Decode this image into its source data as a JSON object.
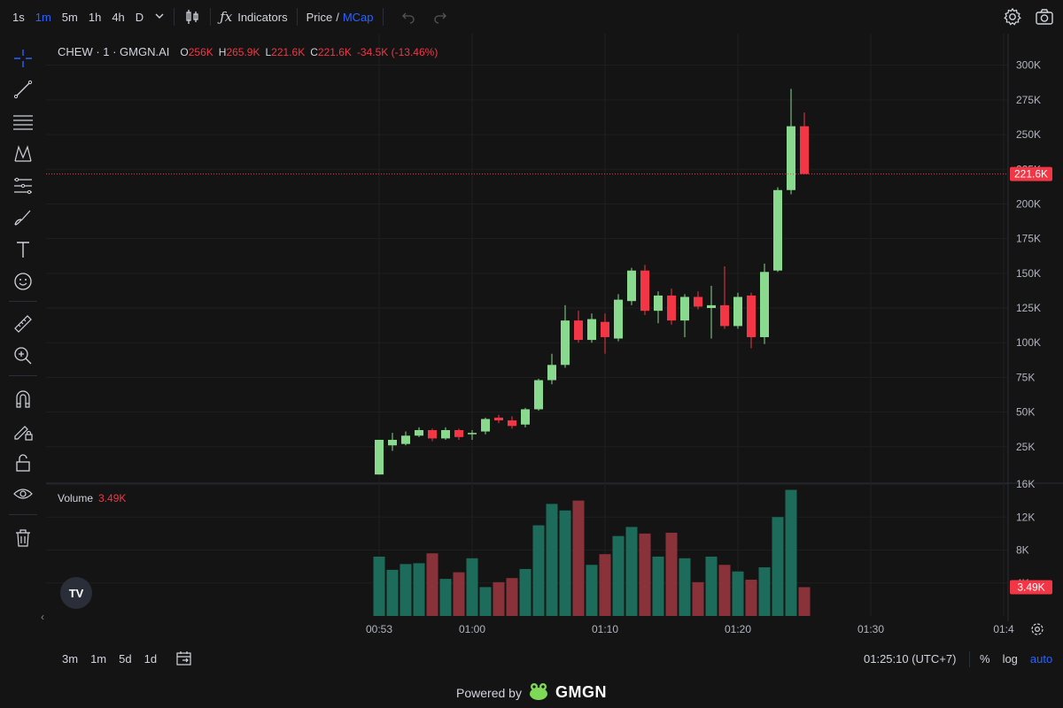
{
  "toolbar": {
    "timeframes": [
      "1s",
      "1m",
      "5m",
      "1h",
      "4h",
      "D"
    ],
    "active_timeframe": "1m",
    "indicators_label": "Indicators",
    "price_label": "Price",
    "slash": "/",
    "mcap_label": "MCap"
  },
  "legend": {
    "symbol": "CHEW · 1 · GMGN.AI",
    "o_key": "O",
    "o_val": "256K",
    "h_key": "H",
    "h_val": "265.9K",
    "l_key": "L",
    "l_val": "221.6K",
    "c_key": "C",
    "c_val": "221.6K",
    "change": "-34.5K (-13.46%)"
  },
  "volume_legend": {
    "label": "Volume",
    "value": "3.49K"
  },
  "bottom": {
    "ranges": [
      "3m",
      "1m",
      "5d",
      "1d"
    ],
    "clock": "01:25:10 (UTC+7)",
    "percent": "%",
    "log": "log",
    "auto": "auto"
  },
  "footer": {
    "powered": "Powered by",
    "brand": "GMGN"
  },
  "colors": {
    "up": "#89d98f",
    "down": "#f23645",
    "vol_up": "#1d6b5a",
    "vol_down": "#8a323a",
    "accent": "#2962ff"
  },
  "chart_data": {
    "type": "candlestick",
    "x_ticks": [
      "00:53",
      "01:00",
      "01:10",
      "01:20",
      "01:30",
      "01:4"
    ],
    "y_ticks": [
      "25K",
      "50K",
      "75K",
      "100K",
      "125K",
      "150K",
      "175K",
      "200K",
      "225K",
      "250K",
      "275K",
      "300K"
    ],
    "ylim": [
      0,
      310000
    ],
    "last_price_label": "221.6K",
    "last_price": 221600,
    "volume_ticks": [
      "4K",
      "8K",
      "12K",
      "16K"
    ],
    "volume_ylim": [
      0,
      16000
    ],
    "last_volume_label": "3.49K",
    "last_volume": 3490,
    "candles": [
      {
        "t": "00:53",
        "o": 5000,
        "h": 30000,
        "l": 5000,
        "c": 30000,
        "v": 7200
      },
      {
        "t": "00:54",
        "o": 26000,
        "h": 35000,
        "l": 22000,
        "c": 30000,
        "v": 5600
      },
      {
        "t": "00:55",
        "o": 27000,
        "h": 36000,
        "l": 26000,
        "c": 33000,
        "v": 6300
      },
      {
        "t": "00:56",
        "o": 33000,
        "h": 39000,
        "l": 32000,
        "c": 37000,
        "v": 6400
      },
      {
        "t": "00:57",
        "o": 37000,
        "h": 38000,
        "l": 29000,
        "c": 31000,
        "v": 7600
      },
      {
        "t": "00:58",
        "o": 31000,
        "h": 39000,
        "l": 30000,
        "c": 37000,
        "v": 4500
      },
      {
        "t": "00:59",
        "o": 37000,
        "h": 38000,
        "l": 30000,
        "c": 32000,
        "v": 5300
      },
      {
        "t": "01:00",
        "o": 34000,
        "h": 37000,
        "l": 30000,
        "c": 35000,
        "v": 7000
      },
      {
        "t": "01:01",
        "o": 36000,
        "h": 46000,
        "l": 34000,
        "c": 45000,
        "v": 3500
      },
      {
        "t": "01:02",
        "o": 46000,
        "h": 48000,
        "l": 42000,
        "c": 44000,
        "v": 4100
      },
      {
        "t": "01:03",
        "o": 44000,
        "h": 47000,
        "l": 38000,
        "c": 40000,
        "v": 4600
      },
      {
        "t": "01:04",
        "o": 41000,
        "h": 53000,
        "l": 39000,
        "c": 52000,
        "v": 5700
      },
      {
        "t": "01:05",
        "o": 52000,
        "h": 74000,
        "l": 51000,
        "c": 73000,
        "v": 11000
      },
      {
        "t": "01:06",
        "o": 73000,
        "h": 92000,
        "l": 70000,
        "c": 84000,
        "v": 13600
      },
      {
        "t": "01:07",
        "o": 84000,
        "h": 127000,
        "l": 82000,
        "c": 116000,
        "v": 12800
      },
      {
        "t": "01:08",
        "o": 116000,
        "h": 123000,
        "l": 100000,
        "c": 102000,
        "v": 14000
      },
      {
        "t": "01:09",
        "o": 102000,
        "h": 121000,
        "l": 100000,
        "c": 117000,
        "v": 6200
      },
      {
        "t": "01:10",
        "o": 115000,
        "h": 121000,
        "l": 92000,
        "c": 104000,
        "v": 7500
      },
      {
        "t": "01:11",
        "o": 103000,
        "h": 135000,
        "l": 101000,
        "c": 131000,
        "v": 9700
      },
      {
        "t": "01:12",
        "o": 130000,
        "h": 154000,
        "l": 127000,
        "c": 152000,
        "v": 10800
      },
      {
        "t": "01:13",
        "o": 152000,
        "h": 156000,
        "l": 120000,
        "c": 123000,
        "v": 10000
      },
      {
        "t": "01:14",
        "o": 123000,
        "h": 137000,
        "l": 114000,
        "c": 134000,
        "v": 7200
      },
      {
        "t": "01:15",
        "o": 134000,
        "h": 139000,
        "l": 113000,
        "c": 116000,
        "v": 10100
      },
      {
        "t": "01:16",
        "o": 116000,
        "h": 135000,
        "l": 104000,
        "c": 133000,
        "v": 7000
      },
      {
        "t": "01:17",
        "o": 133000,
        "h": 137000,
        "l": 124000,
        "c": 126000,
        "v": 4100
      },
      {
        "t": "01:18",
        "o": 125000,
        "h": 141000,
        "l": 103000,
        "c": 127000,
        "v": 7200
      },
      {
        "t": "01:19",
        "o": 127000,
        "h": 155000,
        "l": 110000,
        "c": 112000,
        "v": 6200
      },
      {
        "t": "01:20",
        "o": 112000,
        "h": 136000,
        "l": 110000,
        "c": 133000,
        "v": 5400
      },
      {
        "t": "01:21",
        "o": 134000,
        "h": 136000,
        "l": 96000,
        "c": 104000,
        "v": 4400
      },
      {
        "t": "01:22",
        "o": 104000,
        "h": 157000,
        "l": 99000,
        "c": 151000,
        "v": 5900
      },
      {
        "t": "01:23",
        "o": 152000,
        "h": 212000,
        "l": 151000,
        "c": 210000,
        "v": 12000
      },
      {
        "t": "01:24",
        "o": 210000,
        "h": 283000,
        "l": 207000,
        "c": 256000,
        "v": 15300
      },
      {
        "t": "01:25",
        "o": 256000,
        "h": 265900,
        "l": 221600,
        "c": 221600,
        "v": 3490
      }
    ]
  }
}
